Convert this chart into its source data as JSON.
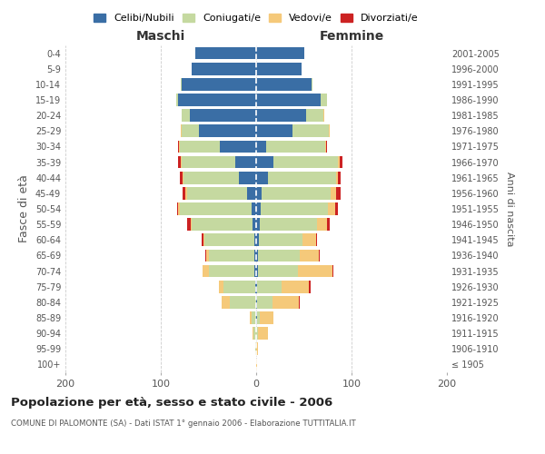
{
  "age_groups": [
    "100+",
    "95-99",
    "90-94",
    "85-89",
    "80-84",
    "75-79",
    "70-74",
    "65-69",
    "60-64",
    "55-59",
    "50-54",
    "45-49",
    "40-44",
    "35-39",
    "30-34",
    "25-29",
    "20-24",
    "15-19",
    "10-14",
    "5-9",
    "0-4"
  ],
  "birth_years": [
    "≤ 1905",
    "1906-1910",
    "1911-1915",
    "1916-1920",
    "1921-1925",
    "1926-1930",
    "1931-1935",
    "1936-1940",
    "1941-1945",
    "1946-1950",
    "1951-1955",
    "1956-1960",
    "1961-1965",
    "1966-1970",
    "1971-1975",
    "1976-1980",
    "1981-1985",
    "1986-1990",
    "1991-1995",
    "1996-2000",
    "2001-2005"
  ],
  "males": {
    "celibi": [
      0,
      0,
      0,
      0,
      0,
      1,
      2,
      2,
      2,
      4,
      5,
      10,
      18,
      22,
      38,
      60,
      70,
      82,
      78,
      68,
      64
    ],
    "coniugati": [
      0,
      1,
      3,
      5,
      28,
      33,
      48,
      48,
      52,
      64,
      75,
      62,
      58,
      56,
      42,
      18,
      8,
      2,
      1,
      0,
      0
    ],
    "vedovi": [
      0,
      0,
      1,
      2,
      8,
      5,
      6,
      2,
      1,
      1,
      2,
      2,
      1,
      1,
      1,
      1,
      0,
      0,
      0,
      0,
      0
    ],
    "divorziati": [
      0,
      0,
      0,
      0,
      0,
      0,
      0,
      1,
      2,
      3,
      1,
      3,
      3,
      3,
      1,
      0,
      0,
      0,
      0,
      0,
      0
    ]
  },
  "females": {
    "nubili": [
      0,
      0,
      0,
      1,
      1,
      1,
      2,
      2,
      3,
      4,
      5,
      6,
      12,
      18,
      10,
      38,
      52,
      68,
      58,
      48,
      50
    ],
    "coniugate": [
      0,
      0,
      2,
      3,
      16,
      26,
      42,
      44,
      46,
      60,
      70,
      72,
      72,
      68,
      62,
      38,
      18,
      6,
      1,
      0,
      0
    ],
    "vedove": [
      1,
      2,
      10,
      14,
      28,
      28,
      36,
      20,
      14,
      10,
      8,
      6,
      2,
      2,
      1,
      1,
      1,
      0,
      0,
      0,
      0
    ],
    "divorziate": [
      0,
      0,
      0,
      0,
      1,
      2,
      1,
      1,
      1,
      3,
      3,
      5,
      3,
      2,
      1,
      0,
      0,
      0,
      0,
      0,
      0
    ]
  },
  "colors": {
    "celibi_nubili": "#3a6ea5",
    "coniugati": "#c5d9a0",
    "vedovi": "#f5c97a",
    "divorziati": "#cc2222"
  },
  "xlim": 200,
  "title": "Popolazione per età, sesso e stato civile - 2006",
  "subtitle": "COMUNE DI PALOMONTE (SA) - Dati ISTAT 1° gennaio 2006 - Elaborazione TUTTITALIA.IT",
  "ylabel": "Fasce di età",
  "ylabel_right": "Anni di nascita",
  "label_maschi": "Maschi",
  "label_femmine": "Femmine",
  "legend_labels": [
    "Celibi/Nubili",
    "Coniugati/e",
    "Vedovi/e",
    "Divorziati/e"
  ],
  "background_color": "#ffffff",
  "grid_color": "#cccccc",
  "bar_height": 0.8
}
